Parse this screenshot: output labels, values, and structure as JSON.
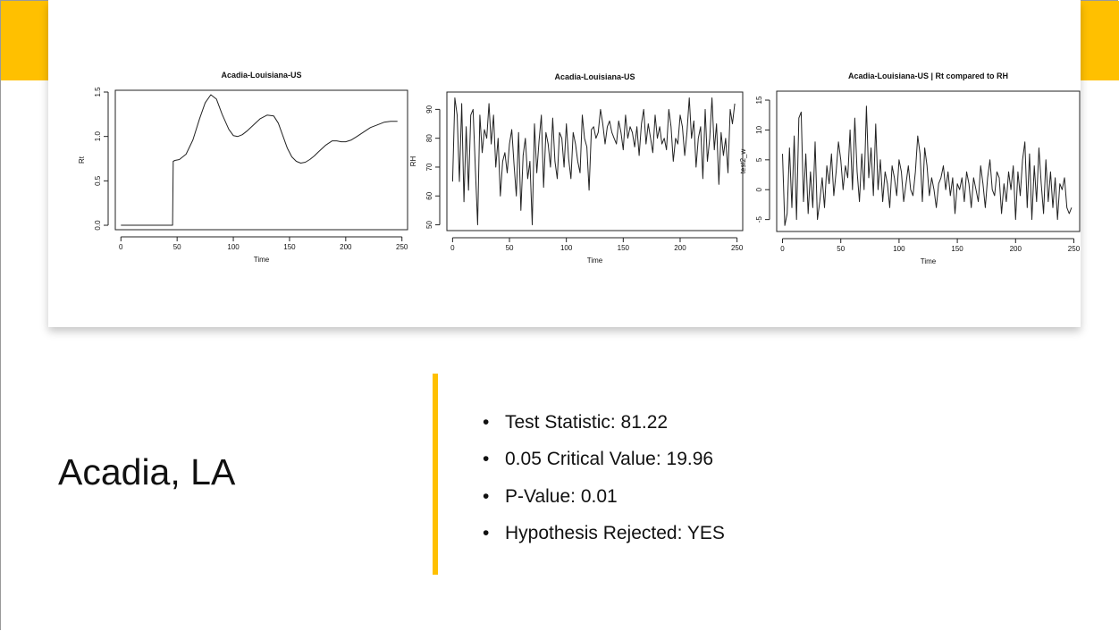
{
  "slide": {
    "title": "Acadia, LA",
    "bullets": [
      "Test Statistic: 81.22",
      "0.05 Critical Value: 19.96",
      "P-Value: 0.01",
      "Hypothesis Rejected: YES"
    ]
  },
  "colors": {
    "accent": "#ffc000",
    "line": "#222222",
    "text": "#111111"
  },
  "chart_data": [
    {
      "type": "line",
      "title": "Acadia-Louisiana-US",
      "xlabel": "Time",
      "ylabel": "Rt",
      "xlim": [
        -5,
        255
      ],
      "ylim": [
        -0.05,
        1.52
      ],
      "xticks": [
        0,
        50,
        100,
        150,
        200,
        250
      ],
      "yticks": [
        0.0,
        0.5,
        1.0,
        1.5
      ],
      "ytick_labels": [
        "0.0",
        "0.5",
        "1.0",
        "1.5"
      ],
      "grid": false,
      "x": [
        0,
        10,
        20,
        30,
        40,
        46,
        46.5,
        48,
        52,
        58,
        64,
        70,
        75,
        80,
        85,
        90,
        96,
        100,
        104,
        108,
        112,
        118,
        124,
        130,
        136,
        140,
        144,
        148,
        152,
        156,
        160,
        164,
        168,
        172,
        176,
        182,
        188,
        192,
        196,
        200,
        205,
        210,
        216,
        222,
        228,
        234,
        240,
        246
      ],
      "y": [
        0,
        0,
        0,
        0,
        0,
        0,
        0.72,
        0.73,
        0.74,
        0.8,
        0.96,
        1.2,
        1.38,
        1.47,
        1.42,
        1.25,
        1.08,
        1.01,
        1.0,
        1.02,
        1.06,
        1.13,
        1.2,
        1.24,
        1.23,
        1.15,
        1.01,
        0.87,
        0.77,
        0.72,
        0.7,
        0.71,
        0.74,
        0.78,
        0.83,
        0.9,
        0.95,
        0.95,
        0.94,
        0.94,
        0.96,
        1.0,
        1.05,
        1.1,
        1.13,
        1.16,
        1.17,
        1.17
      ]
    },
    {
      "type": "line",
      "title": "Acadia-Louisiana-US",
      "xlabel": "Time",
      "ylabel": "RH",
      "xlim": [
        -5,
        255
      ],
      "ylim": [
        48,
        96
      ],
      "xticks": [
        0,
        50,
        100,
        150,
        200,
        250
      ],
      "yticks": [
        50,
        60,
        70,
        80,
        90
      ],
      "ytick_labels": [
        "50",
        "60",
        "70",
        "80",
        "90"
      ],
      "grid": false,
      "x": [
        0,
        2,
        4,
        6,
        8,
        10,
        12,
        14,
        16,
        18,
        20,
        22,
        24,
        26,
        28,
        30,
        32,
        34,
        36,
        38,
        40,
        42,
        44,
        46,
        48,
        50,
        52,
        54,
        56,
        58,
        60,
        62,
        64,
        66,
        68,
        70,
        72,
        74,
        76,
        78,
        80,
        82,
        84,
        86,
        88,
        90,
        92,
        94,
        96,
        98,
        100,
        102,
        104,
        106,
        108,
        110,
        112,
        114,
        116,
        118,
        120,
        122,
        124,
        126,
        128,
        130,
        132,
        134,
        136,
        138,
        140,
        142,
        144,
        146,
        148,
        150,
        152,
        154,
        156,
        158,
        160,
        162,
        164,
        166,
        168,
        170,
        172,
        174,
        176,
        178,
        180,
        182,
        184,
        186,
        188,
        190,
        192,
        194,
        196,
        198,
        200,
        202,
        204,
        206,
        208,
        210,
        212,
        214,
        216,
        218,
        220,
        222,
        224,
        226,
        228,
        230,
        232,
        234,
        236,
        238,
        240,
        242,
        244,
        246,
        248
      ],
      "y": [
        65,
        94,
        88,
        65,
        92,
        58,
        84,
        62,
        88,
        90,
        70,
        50,
        88,
        75,
        83,
        80,
        92,
        78,
        88,
        70,
        80,
        60,
        72,
        75,
        68,
        78,
        83,
        71,
        60,
        82,
        55,
        74,
        80,
        66,
        72,
        50,
        85,
        68,
        79,
        88,
        63,
        82,
        78,
        70,
        87,
        72,
        66,
        82,
        80,
        70,
        85,
        73,
        66,
        82,
        78,
        72,
        68,
        88,
        80,
        77,
        62,
        83,
        84,
        80,
        82,
        90,
        85,
        78,
        84,
        86,
        82,
        80,
        78,
        86,
        82,
        76,
        88,
        80,
        84,
        82,
        77,
        84,
        74,
        85,
        90,
        78,
        85,
        80,
        75,
        88,
        80,
        84,
        78,
        80,
        76,
        90,
        84,
        72,
        80,
        78,
        88,
        84,
        74,
        82,
        94,
        80,
        86,
        70,
        80,
        84,
        66,
        90,
        72,
        80,
        94,
        76,
        85,
        64,
        82,
        74,
        80,
        68,
        90,
        85,
        92
      ]
    },
    {
      "type": "line",
      "title": "Acadia-Louisiana-US | Rt compared to RH",
      "xlabel": "Time",
      "ylabel": "test2_w",
      "xlim": [
        -5,
        255
      ],
      "ylim": [
        -7,
        16.5
      ],
      "xticks": [
        0,
        50,
        100,
        150,
        200,
        250
      ],
      "yticks": [
        -5,
        0,
        5,
        10,
        15
      ],
      "ytick_labels": [
        "-5",
        "0",
        "5",
        "10",
        "15"
      ],
      "grid": false,
      "x": [
        0,
        2,
        4,
        6,
        8,
        10,
        12,
        14,
        16,
        18,
        20,
        22,
        24,
        26,
        28,
        30,
        32,
        34,
        36,
        38,
        40,
        42,
        44,
        46,
        48,
        50,
        52,
        54,
        56,
        58,
        60,
        62,
        64,
        66,
        68,
        70,
        72,
        74,
        76,
        78,
        80,
        82,
        84,
        86,
        88,
        90,
        92,
        94,
        96,
        98,
        100,
        102,
        104,
        106,
        108,
        110,
        112,
        114,
        116,
        118,
        120,
        122,
        124,
        126,
        128,
        130,
        132,
        134,
        136,
        138,
        140,
        142,
        144,
        146,
        148,
        150,
        152,
        154,
        156,
        158,
        160,
        162,
        164,
        166,
        168,
        170,
        172,
        174,
        176,
        178,
        180,
        182,
        184,
        186,
        188,
        190,
        192,
        194,
        196,
        198,
        200,
        202,
        204,
        206,
        208,
        210,
        212,
        214,
        216,
        218,
        220,
        222,
        224,
        226,
        228,
        230,
        232,
        234,
        236,
        238,
        240,
        242,
        244,
        246,
        248
      ],
      "y": [
        6,
        -6,
        -4,
        7,
        -3,
        9,
        -5,
        12,
        13,
        -2,
        6,
        -4,
        3,
        -3,
        8,
        -5,
        -2,
        2,
        -3,
        4,
        1,
        6,
        -1,
        3,
        8,
        5,
        0,
        4,
        2,
        10,
        0,
        12,
        3,
        -2,
        6,
        0,
        14,
        2,
        7,
        -1,
        11,
        0,
        5,
        -2,
        3,
        1,
        -3,
        4,
        2,
        -1,
        5,
        3,
        -2,
        1,
        4,
        0,
        -1,
        3,
        9,
        6,
        -2,
        7,
        4,
        -1,
        2,
        0,
        -3,
        1,
        2,
        4,
        0,
        3,
        -1,
        2,
        -4,
        1,
        0,
        2,
        -2,
        3,
        1,
        -3,
        2,
        0,
        -2,
        4,
        1,
        -3,
        2,
        5,
        0,
        -1,
        3,
        2,
        -4,
        1,
        -2,
        3,
        0,
        4,
        -5,
        3,
        -1,
        5,
        8,
        -3,
        6,
        -5,
        4,
        -2,
        7,
        1,
        -4,
        5,
        -2,
        3,
        -3,
        2,
        -5,
        1,
        0,
        2,
        -3,
        -4,
        -3
      ]
    }
  ]
}
